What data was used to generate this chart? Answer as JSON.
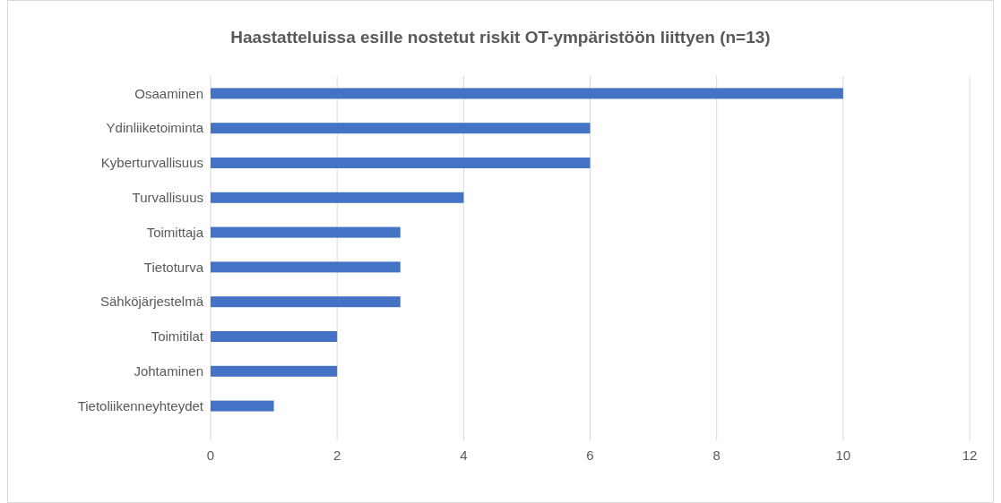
{
  "chart_data": {
    "type": "bar",
    "orientation": "horizontal",
    "title": "Haastatteluissa esille nostetut riskit OT-ympäristöön liittyen (n=13)",
    "categories": [
      "Osaaminen",
      "Ydinliiketoiminta",
      "Kyberturvallisuus",
      "Turvallisuus",
      "Toimittaja",
      "Tietoturva",
      "Sähköjärjestelmä",
      "Toimitilat",
      "Johtaminen",
      "Tietoliikenneyhteydet"
    ],
    "values": [
      10,
      6,
      6,
      4,
      3,
      3,
      3,
      2,
      2,
      1
    ],
    "color": "#4472c4",
    "xlim": [
      0,
      12
    ],
    "xticks": [
      0,
      2,
      4,
      6,
      8,
      10,
      12
    ],
    "grid": "x"
  }
}
